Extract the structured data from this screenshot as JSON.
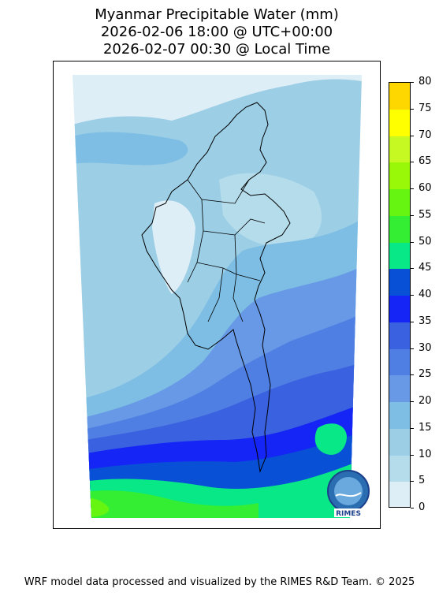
{
  "title": {
    "line1": "Myanmar Precipitable Water (mm)",
    "line2": "2026-02-06 18:00 @ UTC+00:00",
    "line3": "2026-02-07 00:30 @ Local Time"
  },
  "colorbar": {
    "levels": [
      0,
      5,
      10,
      15,
      20,
      25,
      30,
      35,
      40,
      45,
      50,
      55,
      60,
      65,
      70,
      75,
      80
    ],
    "colors": [
      "#deeef6",
      "#b5dceb",
      "#9ccee5",
      "#7ebee4",
      "#6799e6",
      "#4f7fe3",
      "#3a61df",
      "#1525f5",
      "#0850d6",
      "#08e887",
      "#33ee33",
      "#66f511",
      "#99f808",
      "#c6f922",
      "#ffff00",
      "#ffd700"
    ]
  },
  "colors": {
    "border": "#000000",
    "logo_blue": "#1b3f8b"
  },
  "logo": {
    "text": "RIMES"
  },
  "credit": "WRF model data processed and visualized by the RIMES R&D Team. © 2025"
}
